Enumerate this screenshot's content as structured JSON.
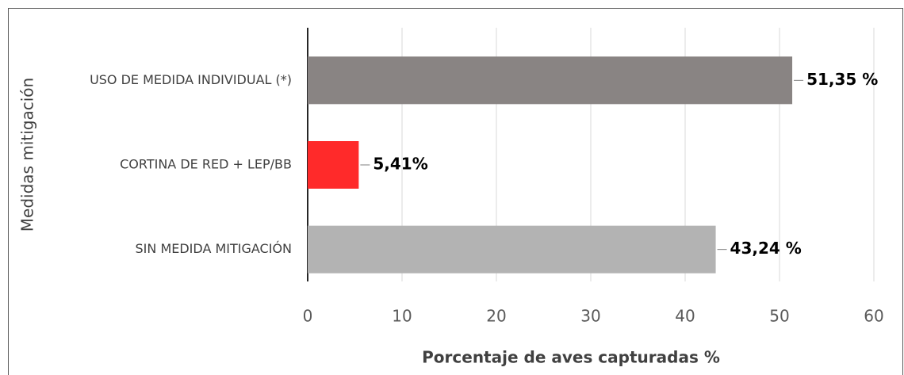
{
  "chart_data": {
    "type": "bar",
    "orientation": "horizontal",
    "categories": [
      "USO DE MEDIDA INDIVIDUAL (*)",
      "CORTINA DE RED  + LEP/BB",
      "SIN MEDIDA MITIGACIÓN"
    ],
    "values": [
      51.35,
      5.41,
      43.24
    ],
    "value_labels": [
      "51,35 %",
      "5,41%",
      "43,24 %"
    ],
    "colors": [
      "#898483",
      "#ff2a2a",
      "#b3b3b3"
    ],
    "xlim": [
      0,
      60
    ],
    "xticks": [
      0,
      10,
      20,
      30,
      40,
      50,
      60
    ],
    "xlabel": "Porcentaje de aves capturadas %",
    "ylabel": "Medidas mitigación",
    "grid": true
  }
}
